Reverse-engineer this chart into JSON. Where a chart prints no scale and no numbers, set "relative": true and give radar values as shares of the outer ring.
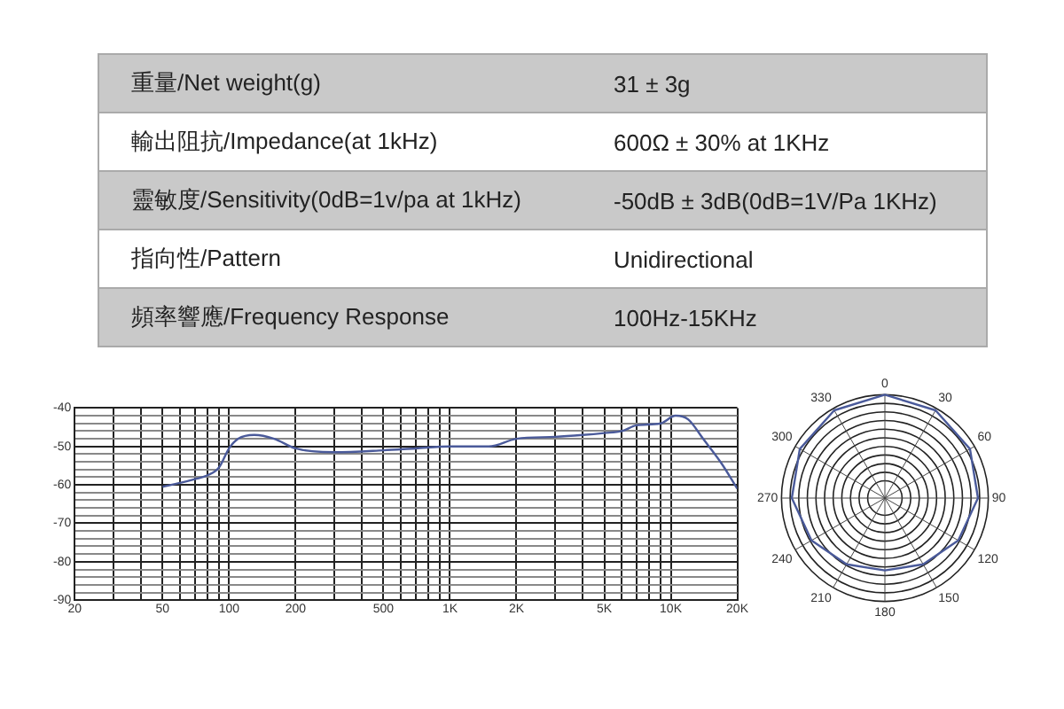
{
  "chart_data": [
    {
      "type": "other",
      "annotations": [
        "重量/Net weight(g)",
        "31 ± 3g",
        "輸出阻抗/Impedance(at 1kHz)",
        "600Ω ± 30% at 1KHz",
        "靈敏度/Sensitivity(0dB=1v/pa at 1kHz)",
        "-50dB ± 3dB(0dB=1V/Pa 1KHz)",
        "指向性/Pattern",
        "Unidirectional",
        "頻率響應/Frequency Response",
        "100Hz-15KHz"
      ]
    },
    {
      "type": "line",
      "log": "x",
      "grid": true,
      "legend": false,
      "marker": "none",
      "line_style": "solid",
      "x": [
        50,
        60,
        70,
        80,
        90,
        100,
        110,
        130,
        160,
        200,
        300,
        500,
        700,
        1000,
        1500,
        2000,
        3000,
        4000,
        5000,
        6000,
        7000,
        9000,
        10500,
        12000,
        14000,
        17000,
        20000
      ],
      "series": [
        {
          "color": "#4a5a9a",
          "values": [
            -60.5,
            -59.5,
            -58.5,
            -57.5,
            -55.5,
            -50.5,
            -48,
            -47,
            -48,
            -50.5,
            -51.5,
            -51,
            -50.5,
            -50,
            -50,
            -48,
            -47.5,
            -47,
            -46.5,
            -46,
            -44.5,
            -44,
            -42,
            -43,
            -48,
            -54.5,
            -61
          ]
        }
      ],
      "xlim": [
        20,
        20000
      ],
      "xticks": [
        20,
        {
          "value": 30,
          "label": null
        },
        {
          "value": 40,
          "label": null
        },
        50,
        {
          "value": 60,
          "label": null
        },
        {
          "value": 70,
          "label": null
        },
        {
          "value": 80,
          "label": null
        },
        {
          "value": 90,
          "label": null
        },
        100,
        200,
        {
          "value": 300,
          "label": null
        },
        {
          "value": 400,
          "label": null
        },
        500,
        {
          "value": 600,
          "label": null
        },
        {
          "value": 700,
          "label": null
        },
        {
          "value": 800,
          "label": null
        },
        {
          "value": 900,
          "label": null
        },
        {
          "value": 1000,
          "label": "1K"
        },
        {
          "value": 2000,
          "label": "2K"
        },
        {
          "value": 3000,
          "label": null
        },
        {
          "value": 4000,
          "label": null
        },
        {
          "value": 5000,
          "label": "5K"
        },
        {
          "value": 6000,
          "label": null
        },
        {
          "value": 7000,
          "label": null
        },
        {
          "value": 8000,
          "label": null
        },
        {
          "value": 9000,
          "label": null
        },
        {
          "value": 10000,
          "label": "10K"
        },
        {
          "value": 20000,
          "label": "20K"
        }
      ],
      "ylim": [
        -90,
        -40
      ],
      "yticks": [
        -90,
        {
          "value": -88,
          "label": null
        },
        {
          "value": -86,
          "label": null
        },
        {
          "value": -84,
          "label": null
        },
        {
          "value": -82,
          "label": null
        },
        -80,
        {
          "value": -78,
          "label": null
        },
        {
          "value": -76,
          "label": null
        },
        {
          "value": -74,
          "label": null
        },
        {
          "value": -72,
          "label": null
        },
        -70,
        {
          "value": -68,
          "label": null
        },
        {
          "value": -66,
          "label": null
        },
        {
          "value": -64,
          "label": null
        },
        {
          "value": -62,
          "label": null
        },
        -60,
        {
          "value": -58,
          "label": null
        },
        {
          "value": -56,
          "label": null
        },
        {
          "value": -54,
          "label": null
        },
        {
          "value": -52,
          "label": null
        },
        -50,
        {
          "value": -48,
          "label": null
        },
        {
          "value": -46,
          "label": null
        },
        {
          "value": -44,
          "label": null
        },
        {
          "value": -42,
          "label": null
        },
        -40
      ]
    },
    {
      "type": "radar",
      "relative": true,
      "grid": true,
      "legend": false,
      "marker": "none",
      "categories": [
        "0",
        "30",
        "60",
        "90",
        "120",
        "150",
        "180",
        "210",
        "240",
        "270",
        "300",
        "330"
      ],
      "series": [
        {
          "color": "#4a5a9a",
          "values": [
            1,
            0.98,
            0.95,
            0.9,
            0.82,
            0.74,
            0.7,
            0.74,
            0.82,
            0.9,
            0.95,
            0.98
          ]
        }
      ]
    }
  ]
}
